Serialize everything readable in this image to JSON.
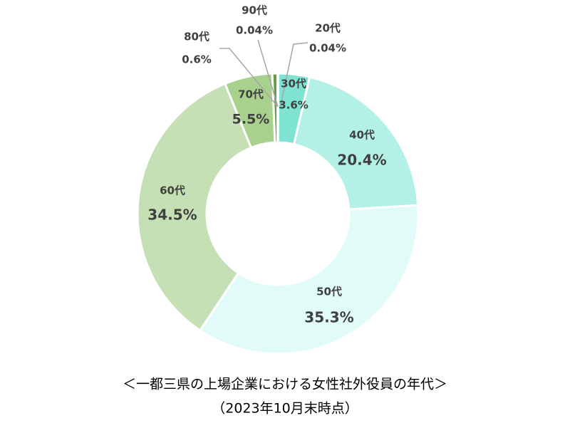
{
  "chart_data": {
    "type": "donut",
    "title": "＜一都三県の上場企業における女性社外役員の年代＞",
    "subtitle": "（2023年10月末時点）",
    "categories": [
      "20代",
      "30代",
      "40代",
      "50代",
      "60代",
      "70代",
      "80代",
      "90代"
    ],
    "values": [
      0.04,
      3.6,
      20.4,
      35.3,
      34.5,
      5.5,
      0.6,
      0.04
    ],
    "value_labels": [
      "0.04%",
      "3.6%",
      "20.4%",
      "35.3%",
      "34.5%",
      "5.5%",
      "0.6%",
      "0.04%"
    ],
    "colors": [
      "#2e7d6b",
      "#7fe3d2",
      "#b3f0e5",
      "#e1fcf8",
      "#c5e0b4",
      "#a9d18e",
      "#6a9a4a",
      "#4f7f2f"
    ]
  }
}
